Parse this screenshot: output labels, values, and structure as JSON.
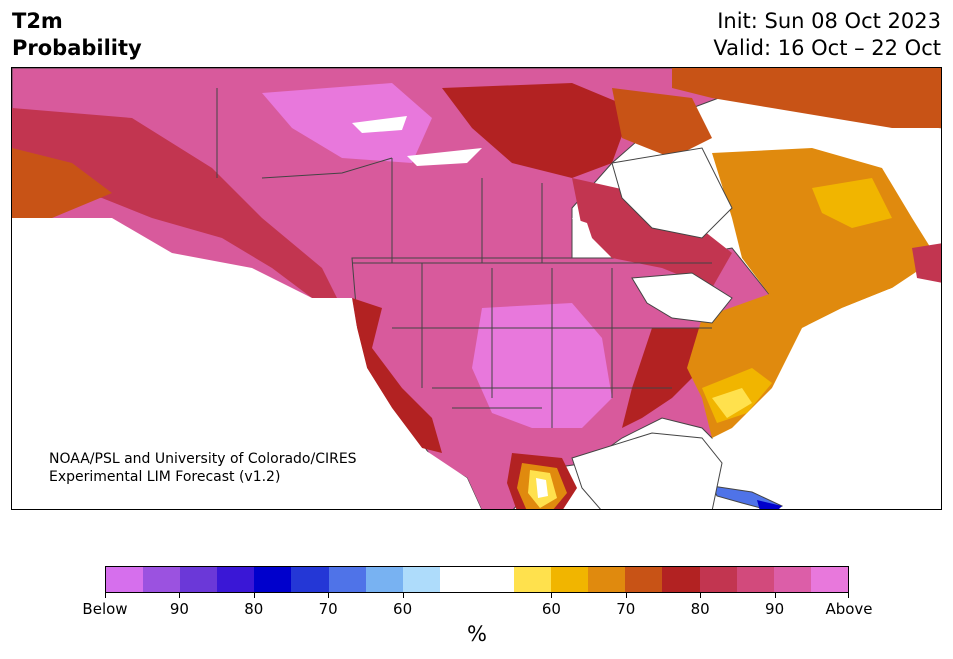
{
  "title": {
    "variable": "T2m",
    "kind": "Probability",
    "init": "Init: Sun 08 Oct 2023",
    "valid": "Valid: 16 Oct – 22 Oct"
  },
  "credit": {
    "line1": "NOAA/PSL and University of Colorado/CIRES",
    "line2": "Experimental LIM Forecast (v1.2)"
  },
  "colorbar": {
    "unit": "%",
    "colors": [
      "#d66fed",
      "#9b52e0",
      "#6b38d8",
      "#3a17d6",
      "#0000cc",
      "#2437d6",
      "#4f73e8",
      "#78b2f2",
      "#aedcfb",
      "#ffffff",
      "#ffffff",
      "#ffe14d",
      "#f1b500",
      "#e08a0e",
      "#c85316",
      "#b22222",
      "#c23550",
      "#d24a7c",
      "#dc5ea8",
      "#e878dc"
    ],
    "ticks": [
      "Below",
      "90",
      "80",
      "70",
      "60",
      "60",
      "70",
      "80",
      "90",
      "Above"
    ]
  },
  "map_legend": {
    "above_pink": "#e06aa8",
    "above_magenta": "#e878dc",
    "above_red": "#c23550",
    "above_dark_red": "#b22222",
    "above_orange": "#e08a0e",
    "above_burnt": "#c85316",
    "above_yellow": "#f1b500",
    "above_light_yellow": "#ffe14d",
    "below_blue": "#2437d6"
  }
}
